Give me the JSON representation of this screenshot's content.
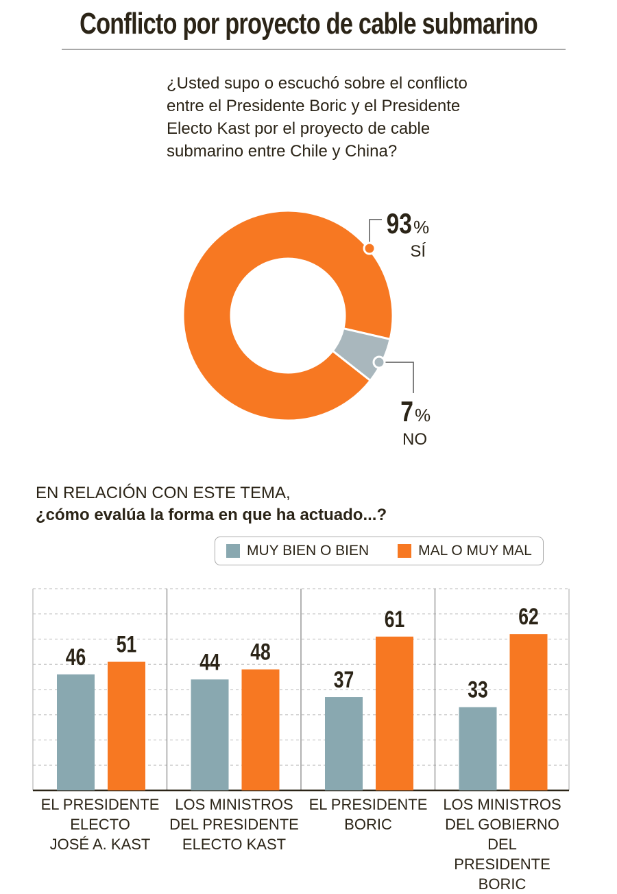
{
  "title": "Conflicto por proyecto de cable submarino",
  "question": "¿Usted supo o escuchó sobre el conflicto entre el Presidente Boric y el Presidente Electo Kast por el proyecto de cable submarino entre Chile y China?",
  "section": {
    "line1": "EN RELACIÓN CON ESTE TEMA,",
    "line2": "¿cómo evalúa la forma en que ha actuado...?"
  },
  "colors": {
    "orange": "#f77822",
    "gray_donut": "#a9b7bd",
    "gray_bar": "#89a8b0",
    "text": "#2b2417"
  },
  "chart_data": [
    {
      "type": "pie",
      "donut": true,
      "slices": [
        {
          "label": "SÍ",
          "value": 93,
          "value_label": "93",
          "pct": "%"
        },
        {
          "label": "NO",
          "value": 7,
          "value_label": "7",
          "pct": "%"
        }
      ]
    },
    {
      "type": "bar",
      "categories": [
        "EL PRESIDENTE ELECTO JOSÉ A. KAST",
        "LOS MINISTROS DEL PRESIDENTE ELECTO KAST",
        "EL PRESIDENTE BORIC",
        "LOS MINISTROS DEL GOBIERNO DEL PRESIDENTE BORIC"
      ],
      "category_lines": [
        [
          "EL PRESIDENTE",
          "ELECTO",
          "JOSÉ A. KAST"
        ],
        [
          "LOS MINISTROS",
          "DEL PRESIDENTE",
          "ELECTO KAST"
        ],
        [
          "EL PRESIDENTE",
          "BORIC"
        ],
        [
          "LOS MINISTROS",
          "DEL GOBIERNO DEL",
          "PRESIDENTE BORIC"
        ]
      ],
      "series": [
        {
          "name": "MUY BIEN O BIEN",
          "values": [
            46,
            44,
            37,
            33
          ]
        },
        {
          "name": "MAL O MUY MAL",
          "values": [
            51,
            48,
            61,
            62
          ]
        }
      ],
      "ylim": [
        0,
        80
      ],
      "grid": true,
      "legend": "top-right"
    }
  ]
}
